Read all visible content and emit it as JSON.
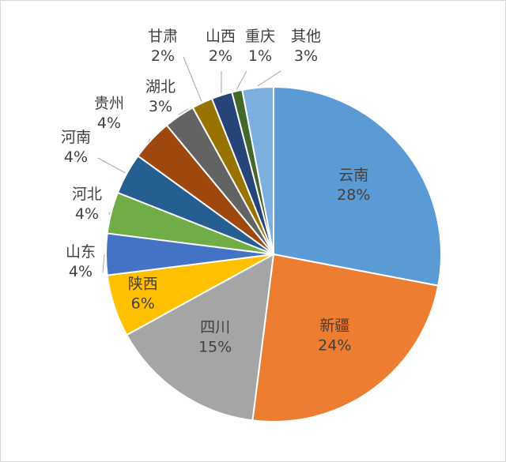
{
  "chart_data": {
    "type": "pie",
    "title": "",
    "legend": "none",
    "slices": [
      {
        "name": "云南",
        "value": 28,
        "label": "28%",
        "color": "#5B9BD5"
      },
      {
        "name": "新疆",
        "value": 24,
        "label": "24%",
        "color": "#ED7D31"
      },
      {
        "name": "四川",
        "value": 15,
        "label": "15%",
        "color": "#A5A5A5"
      },
      {
        "name": "陕西",
        "value": 6,
        "label": "6%",
        "color": "#FFC000"
      },
      {
        "name": "山东",
        "value": 4,
        "label": "4%",
        "color": "#4472C4"
      },
      {
        "name": "河北",
        "value": 4,
        "label": "4%",
        "color": "#70AD47"
      },
      {
        "name": "河南",
        "value": 4,
        "label": "4%",
        "color": "#255E91"
      },
      {
        "name": "贵州",
        "value": 4,
        "label": "4%",
        "color": "#9E480E"
      },
      {
        "name": "湖北",
        "value": 3,
        "label": "3%",
        "color": "#636363"
      },
      {
        "name": "甘肃",
        "value": 2,
        "label": "2%",
        "color": "#997300"
      },
      {
        "name": "山西",
        "value": 2,
        "label": "2%",
        "color": "#264478"
      },
      {
        "name": "重庆",
        "value": 1,
        "label": "1%",
        "color": "#43682B"
      },
      {
        "name": "其他",
        "value": 3,
        "label": "3%",
        "color": "#7CAFDD"
      }
    ]
  }
}
